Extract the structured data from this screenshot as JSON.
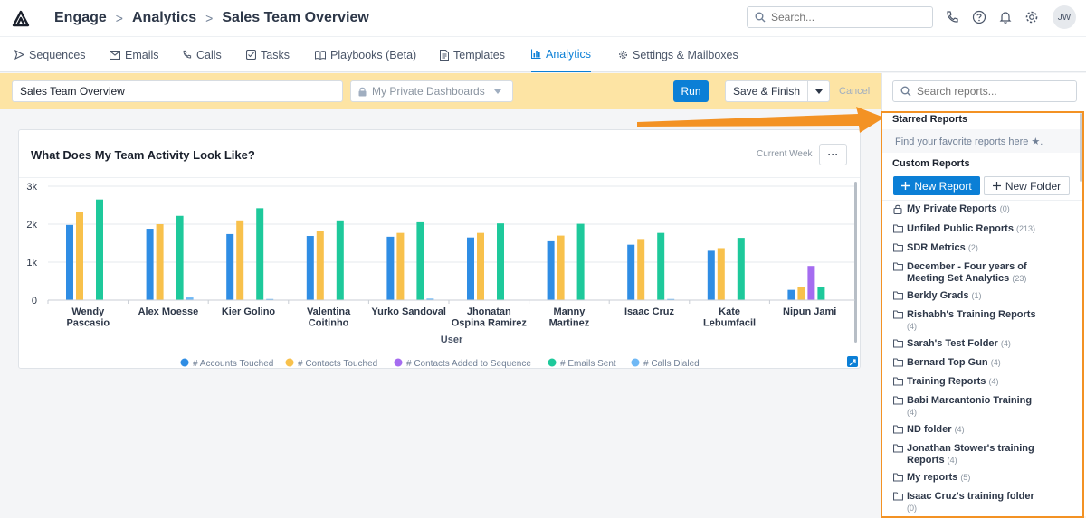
{
  "breadcrumb": {
    "app": "Engage",
    "section": "Analytics",
    "page": "Sales Team Overview",
    "separator": ">"
  },
  "top_search": {
    "placeholder": "Search..."
  },
  "user": {
    "initials": "JW"
  },
  "nav": [
    {
      "label": "Sequences",
      "icon": "send-icon"
    },
    {
      "label": "Emails",
      "icon": "mail-icon"
    },
    {
      "label": "Calls",
      "icon": "phone-icon"
    },
    {
      "label": "Tasks",
      "icon": "check-square-icon"
    },
    {
      "label": "Playbooks (Beta)",
      "icon": "book-icon"
    },
    {
      "label": "Templates",
      "icon": "file-icon"
    },
    {
      "label": "Analytics",
      "icon": "bar-chart-icon",
      "active": true
    },
    {
      "label": "Settings & Mailboxes",
      "icon": "gear-icon"
    }
  ],
  "toolbar": {
    "dashboard_name": "Sales Team Overview",
    "dashboard_folder": "My Private Dashboards",
    "run": "Run",
    "save_finish": "Save & Finish",
    "cancel": "Cancel"
  },
  "card": {
    "title": "What Does My Team Activity Look Like?",
    "period": "Current Week",
    "more": "···"
  },
  "chart_data": {
    "type": "bar",
    "xlabel": "User",
    "ylabel": "",
    "ylim": [
      0,
      3000
    ],
    "yticks": [
      "0",
      "1k",
      "2k",
      "3k"
    ],
    "categories": [
      "Wendy\nPascasio",
      "Alex Moesse",
      "Kier Golino",
      "Valentina\nCoitinho",
      "Yurko Sandoval",
      "Jhonatan\nOspina Ramirez",
      "Manny\nMartinez",
      "Isaac Cruz",
      "Kate\nLebumfacil",
      "Nipun Jami"
    ],
    "series": [
      {
        "name": "# Accounts Touched",
        "color": "#2f8de4",
        "values": [
          1980,
          1880,
          1740,
          1690,
          1670,
          1650,
          1550,
          1460,
          1300,
          270
        ]
      },
      {
        "name": "# Contacts Touched",
        "color": "#f8c14c",
        "values": [
          2320,
          2000,
          2100,
          1830,
          1770,
          1770,
          1700,
          1610,
          1370,
          340
        ]
      },
      {
        "name": "# Contacts Added to Sequence",
        "color": "#a56cf0",
        "values": [
          0,
          0,
          0,
          0,
          0,
          0,
          0,
          0,
          0,
          900
        ]
      },
      {
        "name": "# Emails Sent",
        "color": "#1ec99b",
        "values": [
          2650,
          2220,
          2420,
          2100,
          2050,
          2020,
          2010,
          1770,
          1640,
          340
        ]
      },
      {
        "name": "# Calls Dialed",
        "color": "#6fb8f5",
        "values": [
          0,
          70,
          30,
          0,
          40,
          0,
          0,
          30,
          0,
          0
        ]
      }
    ],
    "legend_position": "bottom",
    "grid": true
  },
  "sidebar": {
    "search_placeholder": "Search reports...",
    "starred_heading": "Starred Reports",
    "starred_hint": "Find your favorite reports here ★.",
    "custom_heading": "Custom Reports",
    "new_report": "New Report",
    "new_folder": "New Folder",
    "reports": [
      {
        "label": "My Private Reports",
        "count": "(0)",
        "icon": "lock-icon"
      },
      {
        "label": "Unfiled Public Reports",
        "count": "(213)",
        "icon": "folder-icon"
      },
      {
        "label": "SDR Metrics",
        "count": "(2)",
        "icon": "folder-icon"
      },
      {
        "label": "December - Four years of Meeting Set Analytics",
        "count": "(23)",
        "icon": "folder-icon"
      },
      {
        "label": "Berkly Grads",
        "count": "(1)",
        "icon": "folder-icon"
      },
      {
        "label": "Rishabh's Training Reports",
        "count": "(4)",
        "icon": "folder-icon"
      },
      {
        "label": "Sarah's Test Folder",
        "count": "(4)",
        "icon": "folder-icon"
      },
      {
        "label": "Bernard Top Gun",
        "count": "(4)",
        "icon": "folder-icon"
      },
      {
        "label": "Training Reports",
        "count": "(4)",
        "icon": "folder-icon"
      },
      {
        "label": "Babi Marcantonio Training",
        "count": "(4)",
        "icon": "folder-icon"
      },
      {
        "label": "ND folder",
        "count": "(4)",
        "icon": "folder-icon"
      },
      {
        "label": "Jonathan Stower's training Reports",
        "count": "(4)",
        "icon": "folder-icon"
      },
      {
        "label": "My reports",
        "count": "(5)",
        "icon": "folder-icon"
      },
      {
        "label": "Isaac Cruz's training folder",
        "count": "(0)",
        "icon": "folder-icon"
      }
    ]
  },
  "colors": {
    "accent": "#0b7fd6",
    "toolbar_bg": "#fde4a4",
    "highlight": "#f39224"
  }
}
